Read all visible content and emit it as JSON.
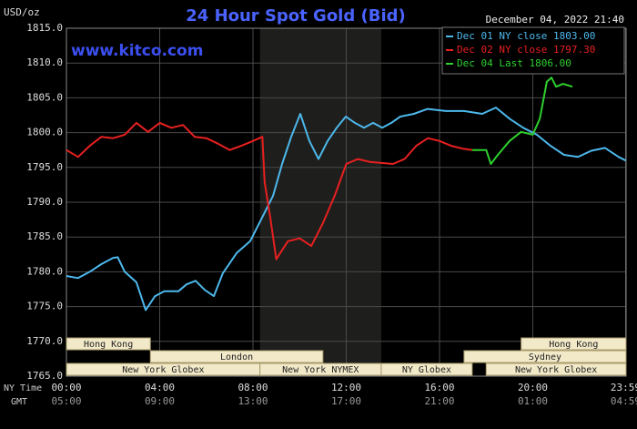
{
  "chart_data": {
    "type": "line",
    "title": "24 Hour Spot Gold (Bid)",
    "timestamp": "December 04, 2022 21:40",
    "watermark": "www.kitco.com",
    "ylabel": "USD/oz",
    "x_row_labels": [
      "NY Time",
      "GMT"
    ],
    "xlim": [
      0,
      24
    ],
    "xticks": [
      {
        "value": 0,
        "label": "00:00"
      },
      {
        "value": 4,
        "label": "04:00"
      },
      {
        "value": 8,
        "label": "08:00"
      },
      {
        "value": 12,
        "label": "12:00"
      },
      {
        "value": 16,
        "label": "16:00"
      },
      {
        "value": 20,
        "label": "20:00"
      },
      {
        "value": 23.98,
        "label": "23:59"
      }
    ],
    "gmt_labels": [
      "05:00",
      "09:00",
      "13:00",
      "17:00",
      "21:00",
      "01:00",
      "04:59"
    ],
    "ylim": [
      1765,
      1815
    ],
    "yticks": [
      {
        "value": 1765,
        "label": "1765.0"
      },
      {
        "value": 1770,
        "label": "1770.0"
      },
      {
        "value": 1775,
        "label": "1775.0"
      },
      {
        "value": 1780,
        "label": "1780.0"
      },
      {
        "value": 1785,
        "label": "1785.0"
      },
      {
        "value": 1790,
        "label": "1790.0"
      },
      {
        "value": 1795,
        "label": "1795.0"
      },
      {
        "value": 1800,
        "label": "1800.0"
      },
      {
        "value": 1805,
        "label": "1805.0"
      },
      {
        "value": 1810,
        "label": "1810.0"
      },
      {
        "value": 1815,
        "label": "1815.0"
      }
    ],
    "grid": true,
    "series": [
      {
        "name": "Dec 01 NY close 1803.00",
        "color": "#4db8ec",
        "x": [
          0,
          0.5,
          1,
          1.5,
          2,
          2.2,
          2.5,
          3,
          3.4,
          3.8,
          4.2,
          4.8,
          5.15,
          5.54,
          5.93,
          6.32,
          6.71,
          7.3,
          7.88,
          8.47,
          8.86,
          9.25,
          9.64,
          10.03,
          10.42,
          10.81,
          11.2,
          11.59,
          11.98,
          12.37,
          12.76,
          13.15,
          13.54,
          13.93,
          14.32,
          14.9,
          15.49,
          16.27,
          17.05,
          17.83,
          18.42,
          19,
          19.59,
          20.17,
          20.76,
          21.34,
          21.93,
          22.51,
          23.1,
          23.68,
          23.98
        ],
        "values": [
          1779.4,
          1779.1,
          1780,
          1781.1,
          1782,
          1782.1,
          1780,
          1778.5,
          1774.5,
          1776.5,
          1777.2,
          1777.2,
          1778.2,
          1778.7,
          1777.4,
          1776.5,
          1779.8,
          1782.7,
          1784.4,
          1788.3,
          1790.9,
          1795.5,
          1799.4,
          1802.7,
          1798.8,
          1796.2,
          1798.8,
          1800.7,
          1802.3,
          1801.4,
          1800.7,
          1801.4,
          1800.7,
          1801.4,
          1802.3,
          1802.7,
          1803.4,
          1803.1,
          1803.1,
          1802.7,
          1803.6,
          1802,
          1800.7,
          1799.7,
          1798.1,
          1796.8,
          1796.5,
          1797.4,
          1797.8,
          1796.5,
          1796
        ]
      },
      {
        "name": "Dec 02 NY close 1797.30",
        "color": "#e82020",
        "x": [
          0,
          0.5,
          1,
          1.5,
          2,
          2.5,
          3,
          3.5,
          4,
          4.5,
          5,
          5.5,
          6,
          6.5,
          7,
          7.5,
          8,
          8.4,
          8.5,
          8.75,
          9,
          9.5,
          10,
          10.5,
          11,
          11.5,
          12,
          12.5,
          13,
          14,
          14.5,
          15,
          15.5,
          16,
          16.5,
          17,
          17.4
        ],
        "values": [
          1797.5,
          1796.5,
          1798.1,
          1799.4,
          1799.2,
          1799.7,
          1801.4,
          1800.1,
          1801.4,
          1800.7,
          1801.1,
          1799.4,
          1799.2,
          1798.4,
          1797.5,
          1798.1,
          1798.8,
          1799.4,
          1792.9,
          1787.6,
          1781.8,
          1784.4,
          1784.8,
          1783.7,
          1787,
          1790.9,
          1795.5,
          1796.2,
          1795.8,
          1795.5,
          1796.2,
          1798.1,
          1799.2,
          1798.8,
          1798.1,
          1797.7,
          1797.5
        ]
      },
      {
        "name": "Dec 04 Last 1806.00",
        "color": "#2ed02e",
        "x": [
          17.4,
          18,
          18.2,
          18.5,
          19,
          19.5,
          20,
          20.3,
          20.6,
          20.8,
          21,
          21.3,
          21.7
        ],
        "values": [
          1797.5,
          1797.5,
          1795.5,
          1796.8,
          1798.8,
          1800.1,
          1799.7,
          1802,
          1807.3,
          1807.9,
          1806.6,
          1807,
          1806.6
        ]
      }
    ],
    "session_rows": [
      [
        {
          "label": "Hong Kong",
          "start": 0,
          "end": 3.6
        },
        {
          "label": "Hong Kong",
          "start": 19.5,
          "end": 24
        }
      ],
      [
        {
          "label": "London",
          "start": 3.6,
          "end": 11
        },
        {
          "label": "Sydney",
          "start": 17.05,
          "end": 24
        }
      ],
      [
        {
          "label": "New York Globex",
          "start": 0,
          "end": 8.3
        },
        {
          "label": "New York NYMEX",
          "start": 8.3,
          "end": 13.5,
          "shaded": true
        },
        {
          "label": "NY Globex",
          "start": 13.5,
          "end": 17.4
        },
        {
          "label": "New York Globex",
          "start": 18,
          "end": 24
        }
      ]
    ]
  }
}
